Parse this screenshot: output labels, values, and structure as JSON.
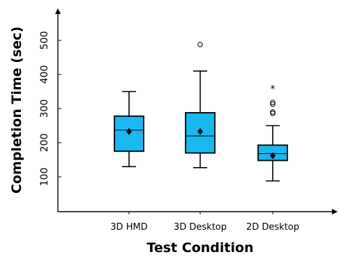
{
  "chart_data": {
    "type": "boxplot",
    "xlabel": "Test Condition",
    "ylabel": "Completion Time (sec)",
    "ylim": [
      0,
      540
    ],
    "yticks": [
      100,
      200,
      300,
      400,
      500
    ],
    "grid": false,
    "box_color": "#1ab8f0",
    "categories": [
      "3D HMD",
      "3D Desktop",
      "2D Desktop"
    ],
    "boxes": [
      {
        "label": "3D HMD",
        "whisker_low": 130,
        "q1": 175,
        "median": 237,
        "q3": 278,
        "whisker_high": 350,
        "mean": 233,
        "outliers": [],
        "extremes": []
      },
      {
        "label": "3D Desktop",
        "whisker_low": 127,
        "q1": 170,
        "median": 220,
        "q3": 288,
        "whisker_high": 410,
        "mean": 233,
        "outliers": [
          488
        ],
        "extremes": []
      },
      {
        "label": "2D Desktop",
        "whisker_low": 88,
        "q1": 148,
        "median": 168,
        "q3": 193,
        "whisker_high": 250,
        "mean": 162,
        "outliers": [
          286,
          290,
          313,
          318
        ],
        "extremes": [
          360
        ]
      }
    ]
  }
}
